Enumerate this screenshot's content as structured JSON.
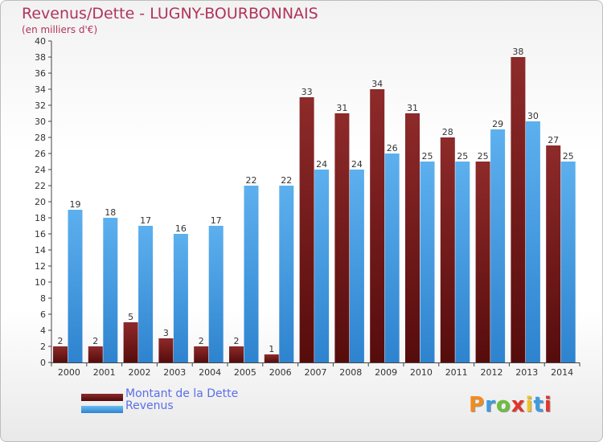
{
  "title": "Revenus/Dette - LUGNY-BOURBONNAIS",
  "subtitle": "(en milliers d'€)",
  "logo": {
    "text": "Proxiti",
    "colors": [
      "#f28c1e",
      "#3d9be0",
      "#6cbf3c",
      "#e2342b",
      "#f2c21e",
      "#3d9be0",
      "#e2342b"
    ]
  },
  "colors": {
    "dette": "#7a1d1d",
    "revenus": "#4ea3e6",
    "title": "#b0345a",
    "legend_text": "#5b6ee8"
  },
  "chart_data": {
    "type": "bar",
    "categories": [
      "2000",
      "2001",
      "2002",
      "2003",
      "2004",
      "2005",
      "2006",
      "2007",
      "2008",
      "2009",
      "2010",
      "2011",
      "2012",
      "2013",
      "2014"
    ],
    "series": [
      {
        "name": "Montant de la Dette",
        "values": [
          2,
          2,
          5,
          3,
          2,
          2,
          1,
          33,
          31,
          34,
          31,
          28,
          25,
          38,
          27
        ]
      },
      {
        "name": "Revenus",
        "values": [
          19,
          18,
          17,
          16,
          17,
          22,
          22,
          24,
          24,
          26,
          25,
          25,
          29,
          30,
          25
        ]
      }
    ],
    "ylim": [
      0,
      40
    ],
    "ytick_step": 2,
    "grid": false,
    "legend_position": "bottom-left"
  }
}
